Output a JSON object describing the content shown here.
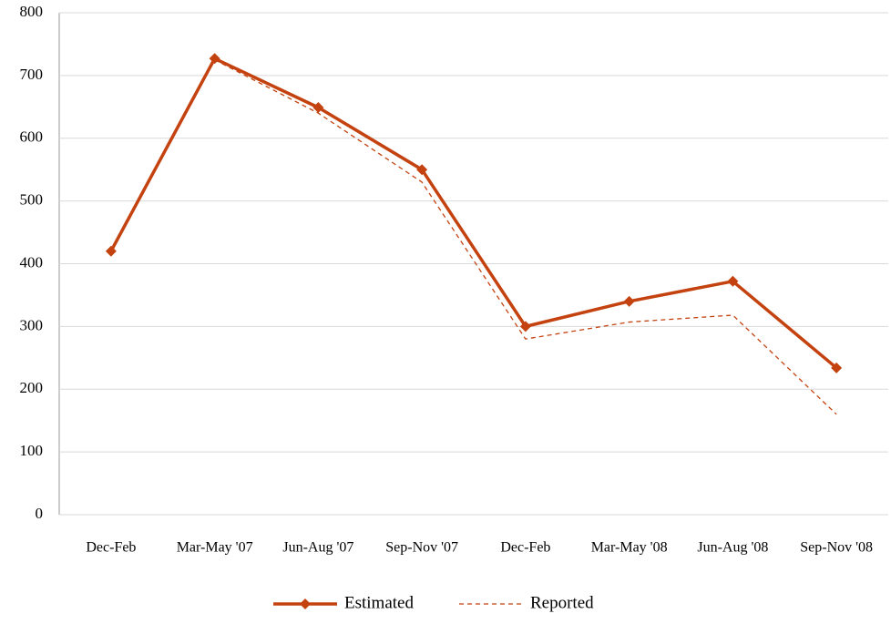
{
  "chart_data": {
    "type": "line",
    "categories": [
      "Dec-Feb",
      "Mar-May '07",
      "Jun-Aug '07",
      "Sep-Nov '07",
      "Dec-Feb",
      "Mar-May '08",
      "Jun-Aug '08",
      "Sep-Nov '08"
    ],
    "series": [
      {
        "name": "Estimated",
        "color": "#c4420f",
        "style": "solid",
        "marker": "diamond",
        "values": [
          420,
          727,
          649,
          550,
          300,
          340,
          372,
          234
        ]
      },
      {
        "name": "Reported",
        "color": "#c4420f",
        "style": "dashed",
        "values": [
          null,
          725,
          640,
          530,
          280,
          307,
          318,
          160
        ]
      }
    ],
    "ylim": [
      0,
      800
    ],
    "yticks": [
      0,
      100,
      200,
      300,
      400,
      500,
      600,
      700,
      800
    ],
    "grid": true,
    "legend": "bottom"
  }
}
